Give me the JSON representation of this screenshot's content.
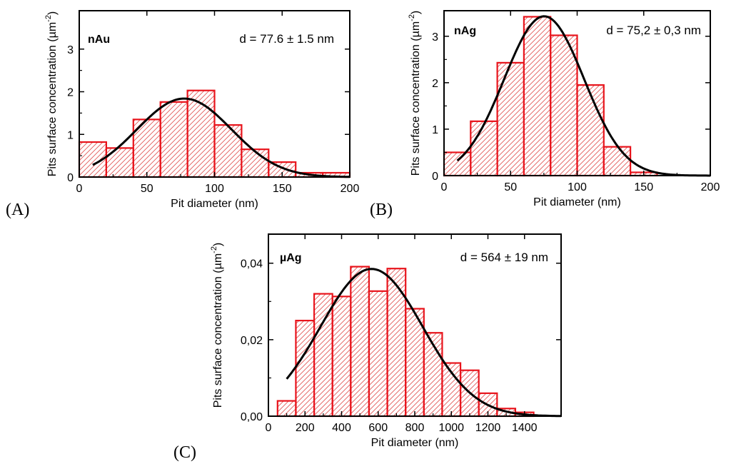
{
  "chart_data": [
    {
      "type": "bar",
      "panel_label": "(A)",
      "series_label": "nAu",
      "annotation": "d = 77.6 ± 1.5 nm",
      "xlabel": "Pit diameter (nm)",
      "ylabel": "Pits surface concentration (µm",
      "ylabel_sup": "-2",
      "ylabel_close": ")",
      "xlim": [
        0,
        200
      ],
      "ylim": [
        0,
        3.9
      ],
      "xticks": [
        0,
        50,
        100,
        150,
        200
      ],
      "xtick_labels": [
        "0",
        "50",
        "100",
        "150",
        "200"
      ],
      "yticks": [
        0,
        1,
        2,
        3
      ],
      "ytick_labels": [
        "0",
        "1",
        "2",
        "3"
      ],
      "bin_width": 20,
      "bins": [
        {
          "x0": 0,
          "value": 0.82
        },
        {
          "x0": 20,
          "value": 0.68
        },
        {
          "x0": 40,
          "value": 1.35
        },
        {
          "x0": 60,
          "value": 1.76
        },
        {
          "x0": 80,
          "value": 2.03
        },
        {
          "x0": 100,
          "value": 1.22
        },
        {
          "x0": 120,
          "value": 0.65
        },
        {
          "x0": 140,
          "value": 0.35
        },
        {
          "x0": 160,
          "value": 0.1
        },
        {
          "x0": 180,
          "value": 0.1
        }
      ],
      "fit": {
        "type": "gaussian",
        "amplitude": 1.84,
        "center": 77.6,
        "sigma": 35,
        "x_start": 10,
        "x_end": 200
      }
    },
    {
      "type": "bar",
      "panel_label": "(B)",
      "series_label": "nAg",
      "annotation": "d = 75,2 ± 0,3 nm",
      "xlabel": "Pit diameter (nm)",
      "ylabel": "Pits surface concentration (µm",
      "ylabel_sup": "-2",
      "ylabel_close": ")",
      "xlim": [
        0,
        200
      ],
      "ylim": [
        0,
        3.55
      ],
      "xticks": [
        0,
        50,
        100,
        150,
        200
      ],
      "xtick_labels": [
        "0",
        "50",
        "100",
        "150",
        "200"
      ],
      "yticks": [
        0,
        1,
        2,
        3
      ],
      "ytick_labels": [
        "0",
        "1",
        "2",
        "3"
      ],
      "bin_width": 20,
      "bins": [
        {
          "x0": 0,
          "value": 0.5
        },
        {
          "x0": 20,
          "value": 1.17
        },
        {
          "x0": 40,
          "value": 2.43
        },
        {
          "x0": 60,
          "value": 3.42
        },
        {
          "x0": 80,
          "value": 3.02
        },
        {
          "x0": 100,
          "value": 1.95
        },
        {
          "x0": 120,
          "value": 0.62
        },
        {
          "x0": 140,
          "value": 0.07
        }
      ],
      "fit": {
        "type": "gaussian",
        "amplitude": 3.43,
        "center": 75.2,
        "sigma": 30,
        "x_start": 10,
        "x_end": 200
      }
    },
    {
      "type": "bar",
      "panel_label": "(C)",
      "series_label": "µAg",
      "annotation": "d = 564 ± 19 nm",
      "xlabel": "Pit diameter (nm)",
      "ylabel": "Pits surface concentration (µm",
      "ylabel_sup": "-2",
      "ylabel_close": ")",
      "xlim": [
        0,
        1600
      ],
      "ylim": [
        0,
        0.0476
      ],
      "xticks": [
        0,
        200,
        400,
        600,
        800,
        1000,
        1200,
        1400
      ],
      "xtick_labels": [
        "0",
        "200",
        "400",
        "600",
        "800",
        "1000",
        "1200",
        "1400"
      ],
      "yticks": [
        0,
        0.02,
        0.04
      ],
      "ytick_labels": [
        "0,00",
        "0,02",
        "0,04"
      ],
      "bin_width": 100,
      "bins": [
        {
          "x0": 50,
          "value": 0.004
        },
        {
          "x0": 150,
          "value": 0.025
        },
        {
          "x0": 250,
          "value": 0.032
        },
        {
          "x0": 350,
          "value": 0.0313
        },
        {
          "x0": 450,
          "value": 0.0391
        },
        {
          "x0": 550,
          "value": 0.0327
        },
        {
          "x0": 650,
          "value": 0.0386
        },
        {
          "x0": 750,
          "value": 0.0281
        },
        {
          "x0": 850,
          "value": 0.0218
        },
        {
          "x0": 950,
          "value": 0.0139
        },
        {
          "x0": 1050,
          "value": 0.012
        },
        {
          "x0": 1150,
          "value": 0.006
        },
        {
          "x0": 1250,
          "value": 0.002
        },
        {
          "x0": 1350,
          "value": 0.001
        }
      ],
      "fit": {
        "type": "gaussian",
        "amplitude": 0.0385,
        "center": 564,
        "sigma": 280,
        "x_start": 100,
        "x_end": 1600
      }
    }
  ]
}
